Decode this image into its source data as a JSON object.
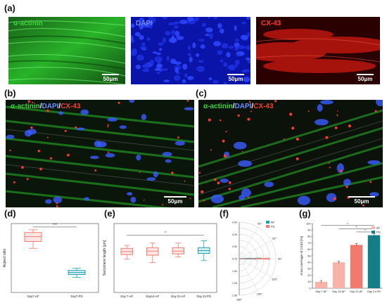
{
  "panels": {
    "a": {
      "label": "(a)",
      "images": [
        {
          "title": "α-actinin",
          "scalebar": "50μm",
          "color": "#2fd22f"
        },
        {
          "title": "DAPI",
          "scalebar": "50μm",
          "color": "#1a2dff"
        },
        {
          "title": "CX-43",
          "scalebar": "50μm",
          "color": "#e0201a"
        }
      ]
    },
    "b": {
      "label": "(b)",
      "title_parts": [
        "α-actinin",
        "/",
        "DAPI",
        "/",
        "CX-43"
      ],
      "scalebar": "50μm"
    },
    "c": {
      "label": "(c)",
      "title_parts": [
        "α-actinin",
        "/",
        "DAPI",
        "/",
        "CX-43"
      ],
      "scalebar": "50μm"
    },
    "d": {
      "label": "(d)"
    },
    "e": {
      "label": "(e)"
    },
    "f": {
      "label": "(f)"
    },
    "g": {
      "label": "(g)"
    }
  },
  "chart_data": [
    {
      "panel": "d",
      "type": "box",
      "ylabel": "Aspect ratio",
      "categories": [
        "Day7-AF",
        "Day7-PD"
      ],
      "boxes": [
        {
          "whisker_low": 3.2,
          "q1": 3.7,
          "median": 4.05,
          "q3": 4.35,
          "whisker_high": 4.55,
          "color": "#f07a6e"
        },
        {
          "whisker_low": 1.1,
          "q1": 1.3,
          "median": 1.45,
          "q3": 1.6,
          "whisker_high": 1.75,
          "color": "#1aa3b0"
        }
      ],
      "ylim": [
        0,
        5
      ],
      "significance": [
        {
          "between": [
            0,
            1
          ],
          "label": "***",
          "y": 4.75
        }
      ]
    },
    {
      "panel": "e",
      "type": "box",
      "ylabel": "Sarcomere length [μm]",
      "categories": [
        "Day 7-AF",
        "Day14-AF",
        "Day 21-AF",
        "Day 21-PD"
      ],
      "boxes": [
        {
          "whisker_low": 1.45,
          "q1": 1.65,
          "median": 1.78,
          "q3": 1.92,
          "whisker_high": 2.05,
          "color": "#f07a6e"
        },
        {
          "whisker_low": 1.3,
          "q1": 1.62,
          "median": 1.8,
          "q3": 1.95,
          "whisker_high": 2.15,
          "color": "#f07a6e"
        },
        {
          "whisker_low": 1.55,
          "q1": 1.68,
          "median": 1.8,
          "q3": 1.95,
          "whisker_high": 2.15,
          "color": "#f07a6e"
        },
        {
          "whisker_low": 1.4,
          "q1": 1.7,
          "median": 1.82,
          "q3": 1.95,
          "whisker_high": 2.25,
          "color": "#1aa3b0"
        }
      ],
      "ylim": [
        0,
        3
      ],
      "significance": [
        {
          "between": [
            0,
            3
          ],
          "label": "*",
          "y": 2.5
        }
      ]
    },
    {
      "panel": "f",
      "type": "polar-histogram",
      "angle_ticks": [
        "30°",
        "60°",
        "90°",
        "120°",
        "150°",
        "180°"
      ],
      "radial_ticks": [
        "0.00",
        "0.25",
        "0.50",
        "0.75",
        "1.00",
        "1.25",
        "1.50"
      ],
      "legend": [
        "AF",
        "PD"
      ],
      "series": [
        {
          "name": "AF",
          "color": "#1aa3b0",
          "angles_deg": [
            75,
            80,
            84,
            87,
            89,
            91,
            93,
            96,
            100,
            105
          ],
          "values": [
            0.05,
            0.1,
            0.2,
            0.45,
            0.9,
            0.7,
            0.35,
            0.15,
            0.08,
            0.04
          ]
        },
        {
          "name": "PD",
          "color": "#f07a6e",
          "angles_deg": [
            89,
            90,
            91
          ],
          "values": [
            0.3,
            1.25,
            0.3
          ]
        }
      ]
    },
    {
      "panel": "g",
      "type": "bar",
      "ylabel": "Area coverage of CX43 [%]",
      "categories": [
        "Day 7-AF",
        "Day 14-AF",
        "Day 21-AF",
        "Day 21-PD"
      ],
      "values": [
        10,
        40,
        67,
        82
      ],
      "errors": [
        2,
        2,
        2,
        2
      ],
      "colors": [
        "#f7b3a8",
        "#f7b3a8",
        "#f07a6e",
        "#137e88"
      ],
      "legend": [
        "AF",
        "PD"
      ],
      "ylim": [
        0,
        100
      ],
      "yticks": [
        0,
        10,
        20,
        30,
        40,
        50,
        60,
        70,
        80,
        90,
        100
      ],
      "significance": [
        {
          "between": [
            0,
            3
          ],
          "label": "*",
          "y": 97
        },
        {
          "between": [
            1,
            3
          ],
          "label": "*",
          "y": 92
        },
        {
          "between": [
            2,
            3
          ],
          "label": "*",
          "y": 87
        }
      ]
    }
  ]
}
